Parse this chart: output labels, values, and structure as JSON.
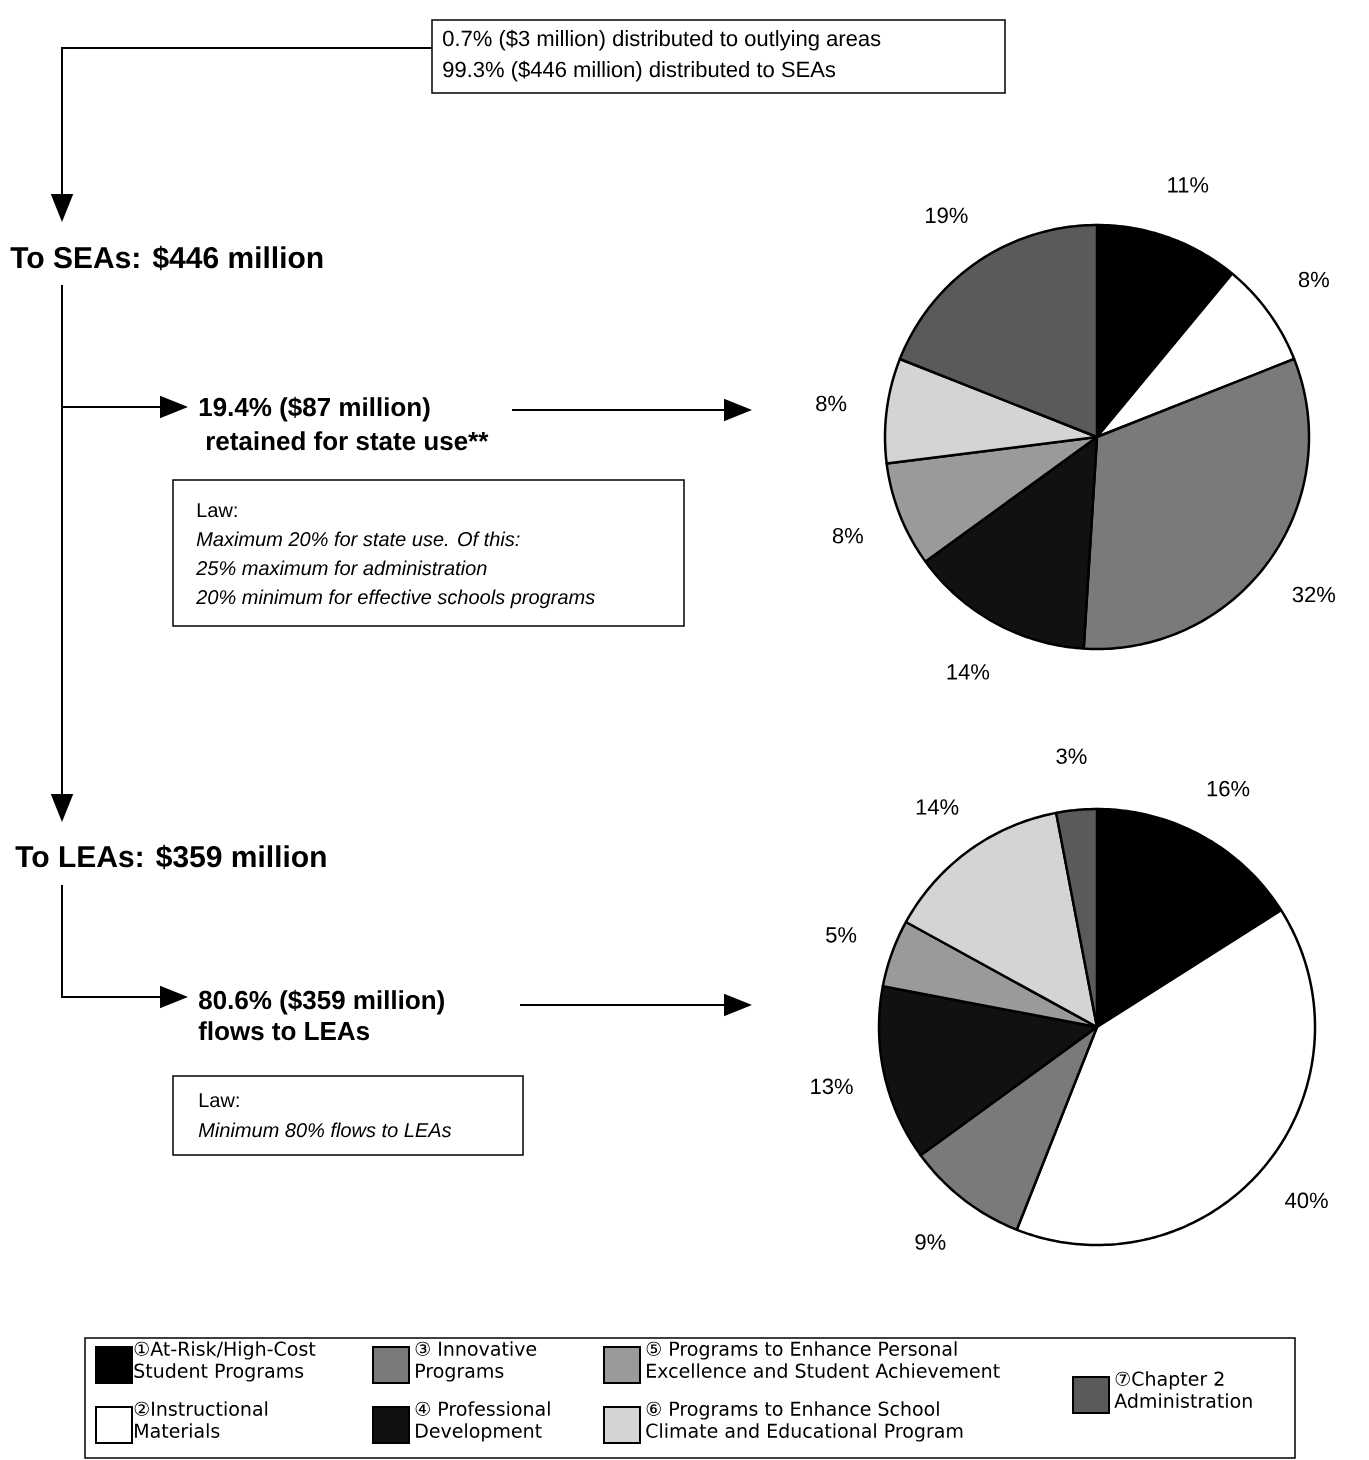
{
  "chart_data": [
    {
      "type": "pie",
      "categories": [
        null,
        null,
        null,
        null,
        null,
        null,
        null
      ],
      "values": [
        11,
        8,
        32,
        14,
        8,
        8,
        19
      ],
      "value_labels": [
        "11%",
        "8%",
        "32%",
        "14%",
        "8%",
        "8%",
        "19%"
      ],
      "colors": [
        "#000000",
        "#ffffff",
        "#7a7a7a",
        "#111111",
        "#9a9a9a",
        "#d4d4d4",
        "#5a5a5a"
      ],
      "annotations": [
        "0.7% ($3 million) distributed to outlying areas",
        "99.3% ($446 million) distributed to SEAs",
        "To SEAs: $446 million",
        "19.4% ($87 million)",
        "retained for state use**",
        "Law:",
        "Maximum 20% for state use.  Of this:",
        "25% maximum for administration",
        "20% minimum for effective schools programs"
      ]
    },
    {
      "type": "pie",
      "categories": [
        "①At-Risk/High-Cost Student Programs",
        "②Instructional Materials",
        "③ Innovative Programs",
        "④ Professional Development",
        "⑤ Programs to Enhance Personal Excellence and Student Achievement",
        "⑥ Programs to Enhance School Climate and Educational Program",
        "⑦Chapter 2 Administration"
      ],
      "values": [
        16,
        40,
        9,
        13,
        5,
        14,
        3
      ],
      "value_labels": [
        "16%",
        "40%",
        "9%",
        "13%",
        "5%",
        "14%",
        "3%"
      ],
      "colors": [
        "#000000",
        "#ffffff",
        "#7a7a7a",
        "#111111",
        "#9a9a9a",
        "#d4d4d4",
        "#5a5a5a"
      ],
      "legend": "bottom",
      "annotations": [
        "To LEAs: $359 million",
        "80.6% ($359 million)",
        "flows to LEAs",
        "Law:",
        "Minimum 80% flows to LEAs"
      ]
    }
  ]
}
